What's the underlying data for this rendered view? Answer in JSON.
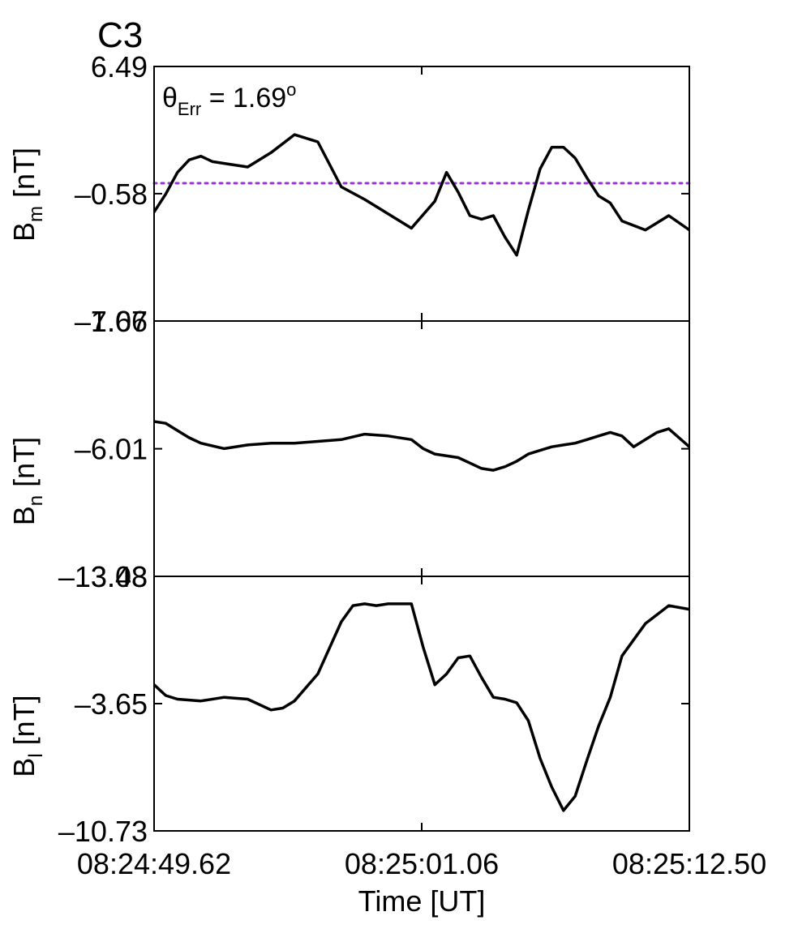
{
  "title": "C3",
  "title_color": "#e8000b",
  "xlabel": "Time [UT]",
  "x_ticks": [
    "08:24:49.62",
    "08:25:01.06",
    "08:25:12.50"
  ],
  "annotation": {
    "symbol": "θ",
    "subscript": "Err",
    "rest": " =  1.69",
    "superscript": "o"
  },
  "chart_data": {
    "type": "line",
    "x_label": "Time [UT]",
    "x_range_seconds_from_start": [
      0,
      22.88
    ],
    "panels": [
      {
        "name": "Bm",
        "ylabel": {
          "main": "B",
          "sub": "m",
          "unit": " [nT]"
        },
        "ylim": [
          -7.66,
          6.49
        ],
        "y_ticks": [
          "6.49",
          "–0.58",
          "–7.66"
        ],
        "y_tick_values": [
          6.49,
          -0.58,
          -7.66
        ],
        "reference_line": {
          "y": 0,
          "style": "dotted",
          "color": "#9b30d9"
        },
        "line_color": "#000000",
        "x": [
          0,
          0.5,
          1.0,
          1.5,
          2.0,
          2.5,
          3.0,
          4.0,
          5.0,
          6.0,
          7.0,
          8.0,
          9.0,
          10.0,
          11.0,
          12.0,
          12.5,
          13.0,
          13.5,
          14.0,
          14.5,
          15.0,
          15.5,
          16.0,
          16.5,
          17.0,
          17.5,
          18.0,
          18.5,
          19.0,
          19.5,
          20.0,
          21.0,
          22.0,
          22.88
        ],
        "y": [
          -1.6,
          -0.6,
          0.6,
          1.3,
          1.5,
          1.2,
          1.1,
          0.9,
          1.7,
          2.7,
          2.3,
          -0.2,
          -0.9,
          -1.7,
          -2.5,
          -1.0,
          0.6,
          -0.5,
          -1.8,
          -2.0,
          -1.8,
          -3.0,
          -4.0,
          -1.5,
          0.8,
          2.0,
          2.0,
          1.4,
          0.3,
          -0.7,
          -1.1,
          -2.1,
          -2.6,
          -1.8,
          -2.6
        ]
      },
      {
        "name": "Bn",
        "ylabel": {
          "main": "B",
          "sub": "n",
          "unit": " [nT]"
        },
        "ylim": [
          -13.08,
          1.07
        ],
        "y_ticks": [
          "1.07",
          "–6.01",
          "–13.08"
        ],
        "y_tick_values": [
          1.07,
          -6.01,
          -13.08
        ],
        "line_color": "#000000",
        "x": [
          0,
          0.5,
          1.0,
          1.5,
          2.0,
          3.0,
          4.0,
          5.0,
          6.0,
          7.0,
          8.0,
          9.0,
          10.0,
          11.0,
          11.5,
          12.0,
          13.0,
          13.5,
          14.0,
          14.5,
          15.0,
          15.5,
          16.0,
          16.5,
          17.0,
          17.5,
          18.0,
          18.5,
          19.0,
          19.5,
          20.0,
          20.5,
          21.0,
          21.5,
          22.0,
          22.88
        ],
        "y": [
          -4.5,
          -4.6,
          -5.0,
          -5.4,
          -5.7,
          -6.0,
          -5.8,
          -5.7,
          -5.7,
          -5.6,
          -5.5,
          -5.2,
          -5.3,
          -5.5,
          -6.0,
          -6.3,
          -6.5,
          -6.8,
          -7.1,
          -7.2,
          -7.0,
          -6.7,
          -6.3,
          -6.1,
          -5.9,
          -5.8,
          -5.7,
          -5.5,
          -5.3,
          -5.1,
          -5.3,
          -5.9,
          -5.5,
          -5.1,
          -4.9,
          -5.9
        ]
      },
      {
        "name": "Bl",
        "ylabel": {
          "main": "B",
          "sub": "l",
          "unit": " [nT]"
        },
        "ylim": [
          -10.73,
          3.43
        ],
        "y_ticks": [
          "3.43",
          "–3.65",
          "–10.73"
        ],
        "y_tick_values": [
          3.43,
          -3.65,
          -10.73
        ],
        "line_color": "#000000",
        "x": [
          0,
          0.5,
          1.0,
          2.0,
          3.0,
          4.0,
          5.0,
          5.5,
          6.0,
          7.0,
          8.0,
          8.5,
          9.0,
          9.5,
          10.0,
          11.0,
          11.5,
          12.0,
          12.5,
          13.0,
          13.5,
          14.0,
          14.5,
          15.0,
          15.5,
          16.0,
          16.5,
          17.0,
          17.5,
          18.0,
          18.5,
          19.0,
          19.5,
          20.0,
          21.0,
          22.0,
          22.88
        ],
        "y": [
          -2.6,
          -3.2,
          -3.4,
          -3.5,
          -3.3,
          -3.4,
          -4.0,
          -3.9,
          -3.5,
          -2.0,
          0.9,
          1.8,
          1.9,
          1.8,
          1.9,
          1.9,
          -0.5,
          -2.6,
          -2.0,
          -1.1,
          -1.0,
          -2.2,
          -3.3,
          -3.4,
          -3.6,
          -4.6,
          -6.7,
          -8.3,
          -9.6,
          -8.8,
          -6.8,
          -4.9,
          -3.3,
          -1.0,
          0.8,
          1.8,
          1.6
        ]
      }
    ]
  }
}
